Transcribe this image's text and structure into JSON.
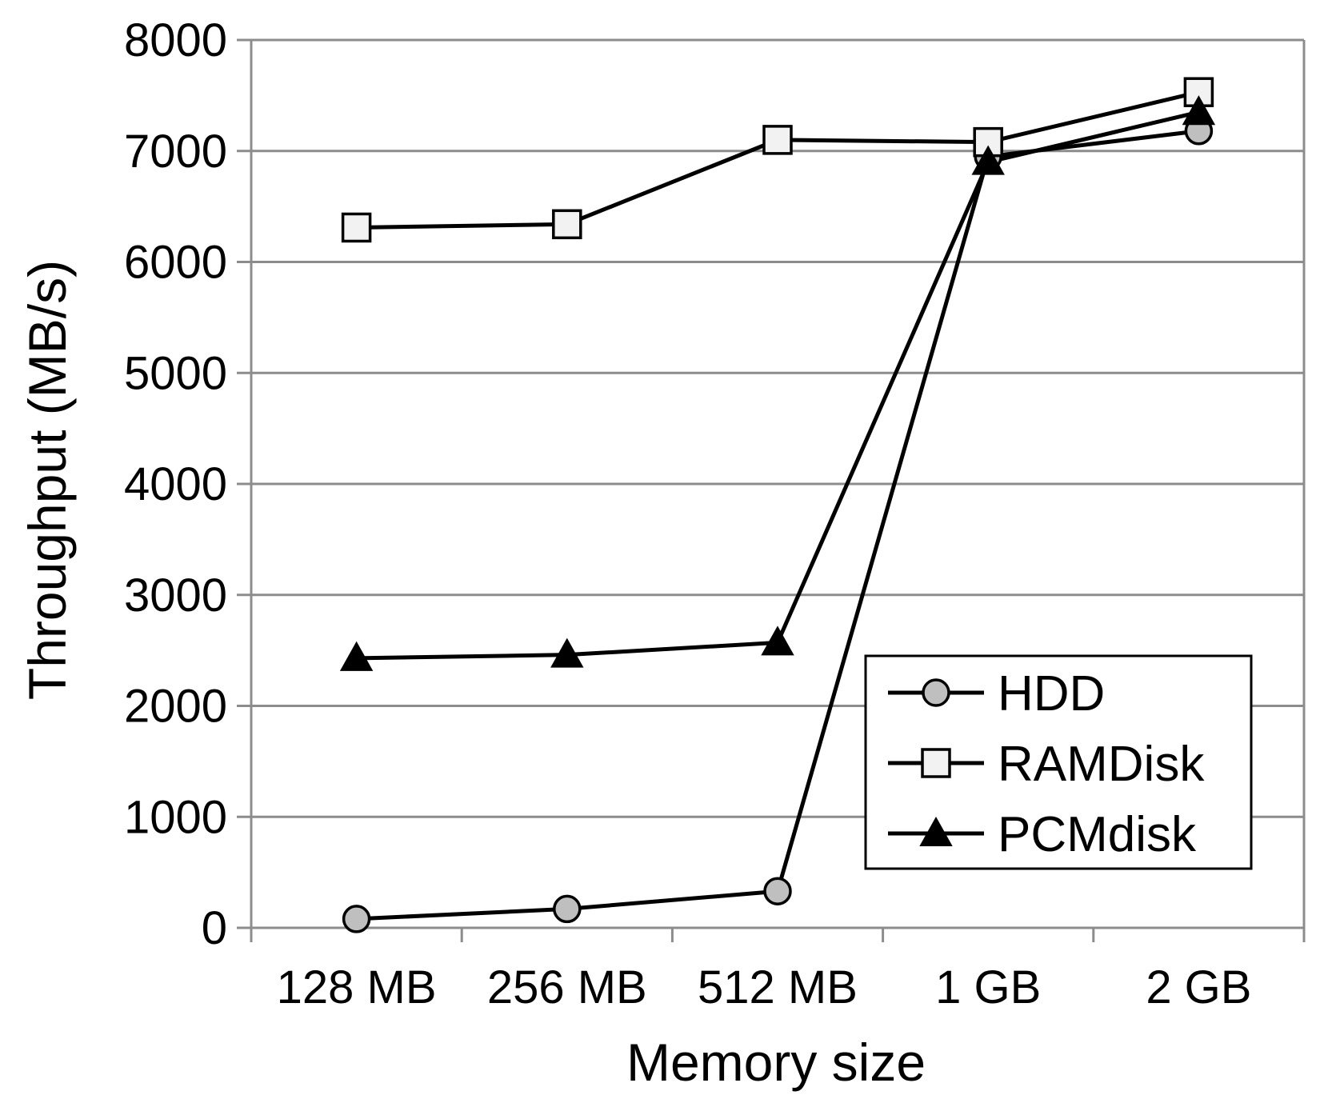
{
  "chart_data": {
    "type": "line",
    "xlabel": "Memory size",
    "ylabel": "Throughput (MB/s)",
    "categories": [
      "128 MB",
      "256 MB",
      "512 MB",
      "1 GB",
      "2 GB"
    ],
    "ylim": [
      0,
      8000
    ],
    "yticks": [
      0,
      1000,
      2000,
      3000,
      4000,
      5000,
      6000,
      7000,
      8000
    ],
    "grid": true,
    "legend_position": "bottom-right",
    "series": [
      {
        "name": "HDD",
        "marker": "circle",
        "marker_color": "#bfbfbf",
        "values": [
          80,
          170,
          330,
          6950,
          7180
        ]
      },
      {
        "name": "RAMDisk",
        "marker": "square",
        "marker_color": "#f2f2f2",
        "values": [
          6310,
          6340,
          7100,
          7080,
          7530
        ]
      },
      {
        "name": "PCMdisk",
        "marker": "triangle",
        "marker_color": "#000000",
        "values": [
          2430,
          2460,
          2570,
          6900,
          7350
        ]
      }
    ]
  }
}
